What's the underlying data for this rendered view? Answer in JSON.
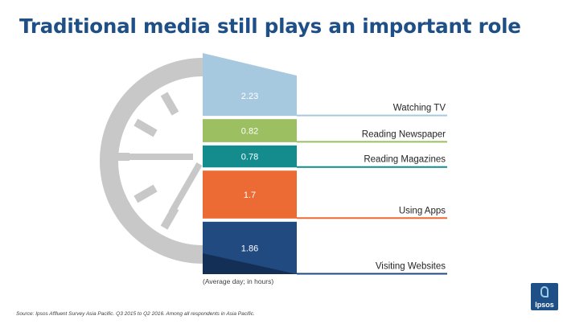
{
  "title": "Traditional media still plays an important role",
  "unit_note": "(Average day; in hours)",
  "source": "Source: Ipsos Affluent Survey Asia Pacific.  Q3 2015 to Q2 2016.  Among all respondents in Asia Pacific.",
  "logo_text": "Ipsos",
  "chart_data": {
    "type": "bar",
    "orientation": "stacked-vertical",
    "categories": [
      "Watching TV",
      "Reading Newspaper",
      "Reading Magazines",
      "Using Apps",
      "Visiting Websites"
    ],
    "values": [
      2.23,
      0.82,
      0.78,
      1.7,
      1.86
    ],
    "value_labels": [
      "2.23",
      "0.82",
      "0.78",
      "1.7",
      "1.86"
    ],
    "colors": [
      "#a6c9df",
      "#9bbf61",
      "#148c8e",
      "#ec6a34",
      "#204a80"
    ],
    "unit": "hours",
    "legend": "none"
  }
}
